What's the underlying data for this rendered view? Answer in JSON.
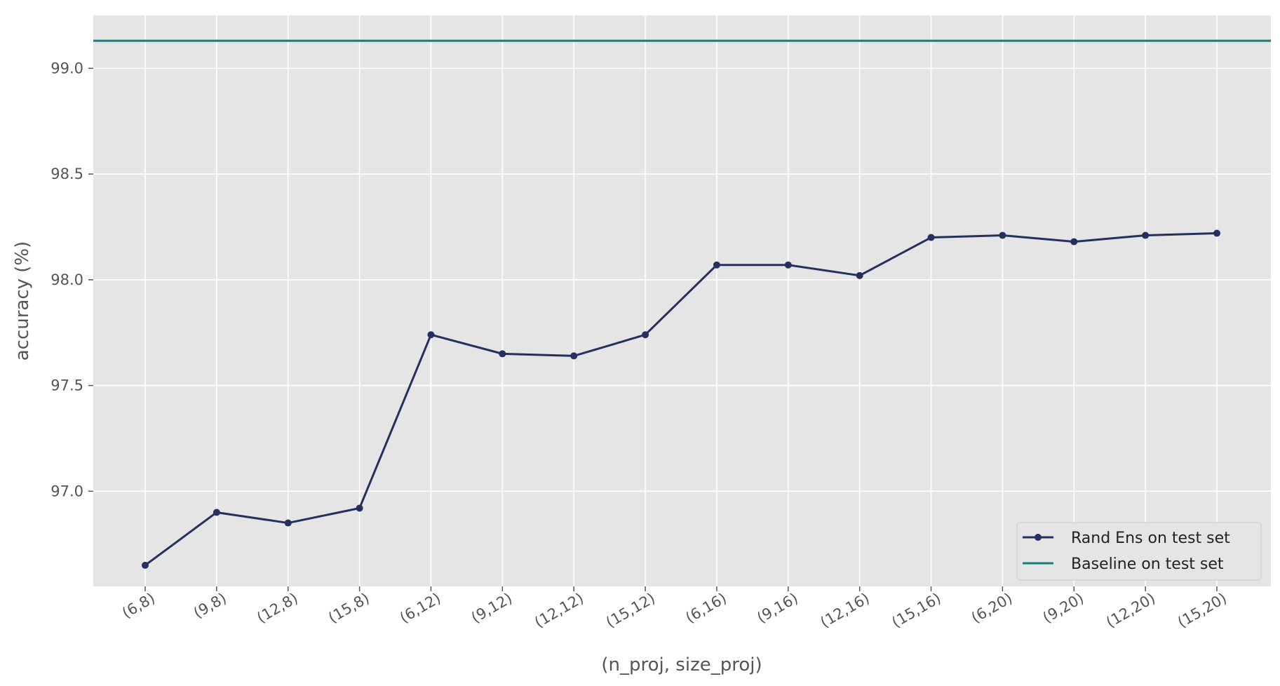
{
  "chart_data": {
    "type": "line",
    "xlabel": "(n_proj, size_proj)",
    "ylabel": "accuracy (%)",
    "categories": [
      "(6,8)",
      "(9,8)",
      "(12,8)",
      "(15,8)",
      "(6,12)",
      "(9,12)",
      "(12,12)",
      "(15,12)",
      "(6,16)",
      "(9,16)",
      "(12,16)",
      "(15,16)",
      "(6,20)",
      "(9,20)",
      "(12,20)",
      "(15,20)"
    ],
    "ylim": [
      96.55,
      99.25
    ],
    "yticks": [
      97.0,
      97.5,
      98.0,
      98.5,
      99.0
    ],
    "ytick_labels": [
      "97.0",
      "97.5",
      "98.0",
      "98.5",
      "99.0"
    ],
    "grid": true,
    "legend_position": "bottom-right",
    "series": [
      {
        "name": "Rand Ens on test set",
        "color": "#262f5e",
        "marker": "circle",
        "values": [
          96.65,
          96.9,
          96.85,
          96.92,
          97.74,
          97.65,
          97.64,
          97.74,
          98.07,
          98.07,
          98.02,
          98.2,
          98.21,
          98.18,
          98.21,
          98.22
        ]
      },
      {
        "name": "Baseline on test set",
        "color": "#117f80",
        "type": "hline",
        "value": 99.13
      }
    ]
  }
}
